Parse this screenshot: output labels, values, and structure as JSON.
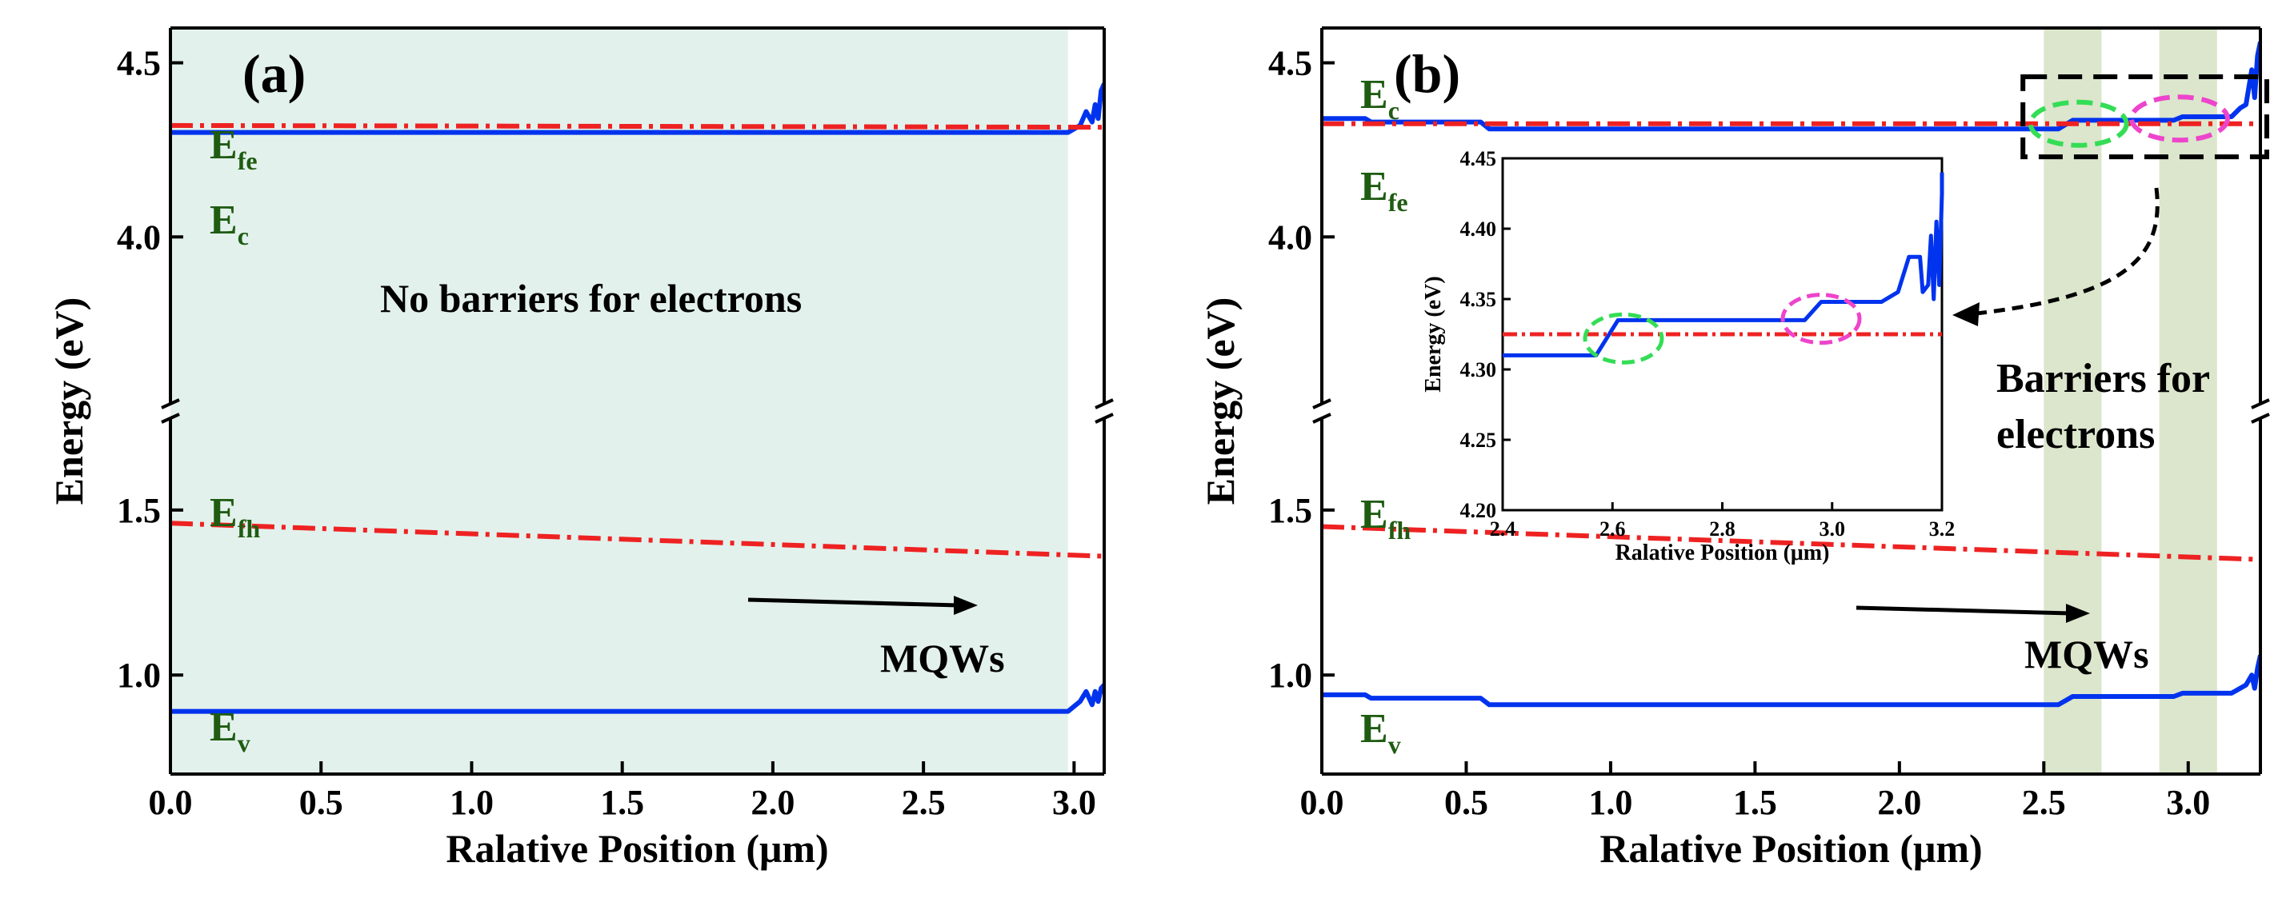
{
  "figure_panels": [
    {
      "panel": "a",
      "label": "(a)"
    },
    {
      "panel": "b",
      "label": "(b)"
    }
  ],
  "chart_data": [
    {
      "type": "line",
      "panel_label": "(a)",
      "xlabel": "Ralative Position (μm)",
      "ylabel": "Energy (eV)",
      "xlim": [
        0.0,
        3.1
      ],
      "ylim_upper": [
        3.5,
        4.6
      ],
      "ylim_lower": [
        0.7,
        1.8
      ],
      "broken_y_axis": true,
      "x_ticks": [
        "0.0",
        "0.5",
        "1.0",
        "1.5",
        "2.0",
        "2.5",
        "3.0"
      ],
      "y_ticks_upper": [
        "4.0",
        "4.5"
      ],
      "y_ticks_lower": [
        "1.0",
        "1.5"
      ],
      "background_band": {
        "x_range": [
          0.0,
          2.98
        ],
        "color": "#e3f1ec"
      },
      "series": [
        {
          "name": "Ec",
          "color": "#0033ee",
          "style": "solid",
          "segment": "upper",
          "points": [
            [
              0.0,
              4.3
            ],
            [
              2.98,
              4.3
            ],
            [
              3.02,
              4.32
            ],
            [
              3.04,
              4.36
            ],
            [
              3.06,
              4.33
            ],
            [
              3.07,
              4.38
            ],
            [
              3.08,
              4.34
            ],
            [
              3.09,
              4.42
            ],
            [
              3.1,
              4.44
            ]
          ]
        },
        {
          "name": "Efe",
          "color": "#ee2222",
          "style": "dashdot",
          "segment": "upper",
          "points": [
            [
              0.0,
              4.32
            ],
            [
              3.1,
              4.315
            ]
          ]
        },
        {
          "name": "Efh",
          "color": "#ee2222",
          "style": "dashdot",
          "segment": "lower",
          "points": [
            [
              0.0,
              1.46
            ],
            [
              3.1,
              1.36
            ]
          ]
        },
        {
          "name": "Ev",
          "color": "#0033ee",
          "style": "solid",
          "segment": "lower",
          "points": [
            [
              0.0,
              0.89
            ],
            [
              2.98,
              0.89
            ],
            [
              3.02,
              0.92
            ],
            [
              3.04,
              0.95
            ],
            [
              3.06,
              0.91
            ],
            [
              3.07,
              0.95
            ],
            [
              3.08,
              0.92
            ],
            [
              3.09,
              0.96
            ],
            [
              3.1,
              0.97
            ]
          ]
        }
      ],
      "series_labels": {
        "Efe": {
          "main": "E",
          "sub": "fe"
        },
        "Ec": {
          "main": "E",
          "sub": "c"
        },
        "Efh": {
          "main": "E",
          "sub": "fh"
        },
        "Ev": {
          "main": "E",
          "sub": "v"
        }
      },
      "annotations": {
        "no_barriers": "No barriers for electrons",
        "mqws": "MQWs"
      }
    },
    {
      "type": "line",
      "panel_label": "(b)",
      "xlabel": "Ralative Position (μm)",
      "ylabel": "Energy (eV)",
      "xlim": [
        0.0,
        3.25
      ],
      "ylim_upper": [
        3.5,
        4.6
      ],
      "ylim_lower": [
        0.7,
        1.8
      ],
      "broken_y_axis": true,
      "x_ticks": [
        "0.0",
        "0.5",
        "1.0",
        "1.5",
        "2.0",
        "2.5",
        "3.0"
      ],
      "y_ticks_upper": [
        "4.0",
        "4.5"
      ],
      "y_ticks_lower": [
        "1.0",
        "1.5"
      ],
      "shaded_bands": [
        {
          "x_range": [
            2.5,
            2.7
          ],
          "color": "#dbe6cc"
        },
        {
          "x_range": [
            2.9,
            3.1
          ],
          "color": "#dbe6cc"
        }
      ],
      "series": [
        {
          "name": "Ec",
          "color": "#0033ee",
          "style": "solid",
          "segment": "upper",
          "points": [
            [
              0.0,
              4.34
            ],
            [
              0.15,
              4.34
            ],
            [
              0.17,
              4.33
            ],
            [
              0.55,
              4.33
            ],
            [
              0.58,
              4.31
            ],
            [
              2.55,
              4.31
            ],
            [
              2.6,
              4.335
            ],
            [
              2.95,
              4.335
            ],
            [
              2.98,
              4.345
            ],
            [
              3.15,
              4.345
            ],
            [
              3.18,
              4.37
            ],
            [
              3.2,
              4.38
            ],
            [
              3.22,
              4.48
            ],
            [
              3.23,
              4.4
            ],
            [
              3.24,
              4.52
            ],
            [
              3.25,
              4.56
            ]
          ]
        },
        {
          "name": "Efe",
          "color": "#ee2222",
          "style": "dashdot",
          "segment": "upper",
          "points": [
            [
              0.0,
              4.325
            ],
            [
              3.25,
              4.325
            ]
          ]
        },
        {
          "name": "Efh",
          "color": "#ee2222",
          "style": "dashdot",
          "segment": "lower",
          "points": [
            [
              0.0,
              1.45
            ],
            [
              3.25,
              1.35
            ]
          ]
        },
        {
          "name": "Ev",
          "color": "#0033ee",
          "style": "solid",
          "segment": "lower",
          "points": [
            [
              0.0,
              0.94
            ],
            [
              0.15,
              0.94
            ],
            [
              0.17,
              0.93
            ],
            [
              0.55,
              0.93
            ],
            [
              0.58,
              0.91
            ],
            [
              2.55,
              0.91
            ],
            [
              2.6,
              0.935
            ],
            [
              2.95,
              0.935
            ],
            [
              2.98,
              0.945
            ],
            [
              3.15,
              0.945
            ],
            [
              3.2,
              0.97
            ],
            [
              3.22,
              1.0
            ],
            [
              3.23,
              0.96
            ],
            [
              3.24,
              1.02
            ],
            [
              3.25,
              1.06
            ]
          ]
        }
      ],
      "series_labels": {
        "Ec": {
          "main": "E",
          "sub": "c"
        },
        "Efe": {
          "main": "E",
          "sub": "fe"
        },
        "Efh": {
          "main": "E",
          "sub": "fh"
        },
        "Ev": {
          "main": "E",
          "sub": "v"
        }
      },
      "annotations": {
        "barriers_line1": "Barriers for",
        "barriers_line2": "electrons",
        "mqws": "MQWs"
      },
      "zoom_box": {
        "x_range": [
          2.4,
          3.25
        ],
        "y_range": [
          4.23,
          4.46
        ]
      },
      "highlight_ellipses": [
        {
          "center": [
            2.62,
            4.325
          ],
          "color": "#33dd55"
        },
        {
          "center": [
            2.97,
            4.34
          ],
          "color": "#ee44cc"
        }
      ],
      "inset": {
        "type": "line",
        "xlabel": "Ralative Position (μm)",
        "ylabel": "Energy (eV)",
        "xlim": [
          2.4,
          3.2
        ],
        "ylim": [
          4.2,
          4.45
        ],
        "x_ticks": [
          "2.4",
          "2.6",
          "2.8",
          "3.0",
          "3.2"
        ],
        "y_ticks": [
          "4.20",
          "4.25",
          "4.30",
          "4.35",
          "4.40",
          "4.45"
        ],
        "series": [
          {
            "name": "Ec",
            "color": "#0033ee",
            "style": "solid",
            "points": [
              [
                2.4,
                4.31
              ],
              [
                2.57,
                4.31
              ],
              [
                2.61,
                4.335
              ],
              [
                2.95,
                4.335
              ],
              [
                2.98,
                4.348
              ],
              [
                3.09,
                4.348
              ],
              [
                3.12,
                4.355
              ],
              [
                3.14,
                4.38
              ],
              [
                3.16,
                4.38
              ],
              [
                3.165,
                4.355
              ],
              [
                3.175,
                4.36
              ],
              [
                3.18,
                4.395
              ],
              [
                3.185,
                4.35
              ],
              [
                3.19,
                4.405
              ],
              [
                3.195,
                4.36
              ],
              [
                3.2,
                4.425
              ],
              [
                3.2,
                4.44
              ]
            ]
          },
          {
            "name": "Efe",
            "color": "#ee2222",
            "style": "dashdot",
            "points": [
              [
                2.4,
                4.325
              ],
              [
                3.2,
                4.325
              ]
            ]
          }
        ],
        "highlight_ellipses": [
          {
            "center": [
              2.62,
              4.322
            ],
            "color": "#33dd55"
          },
          {
            "center": [
              2.98,
              4.336
            ],
            "color": "#ee44cc"
          }
        ]
      }
    }
  ]
}
